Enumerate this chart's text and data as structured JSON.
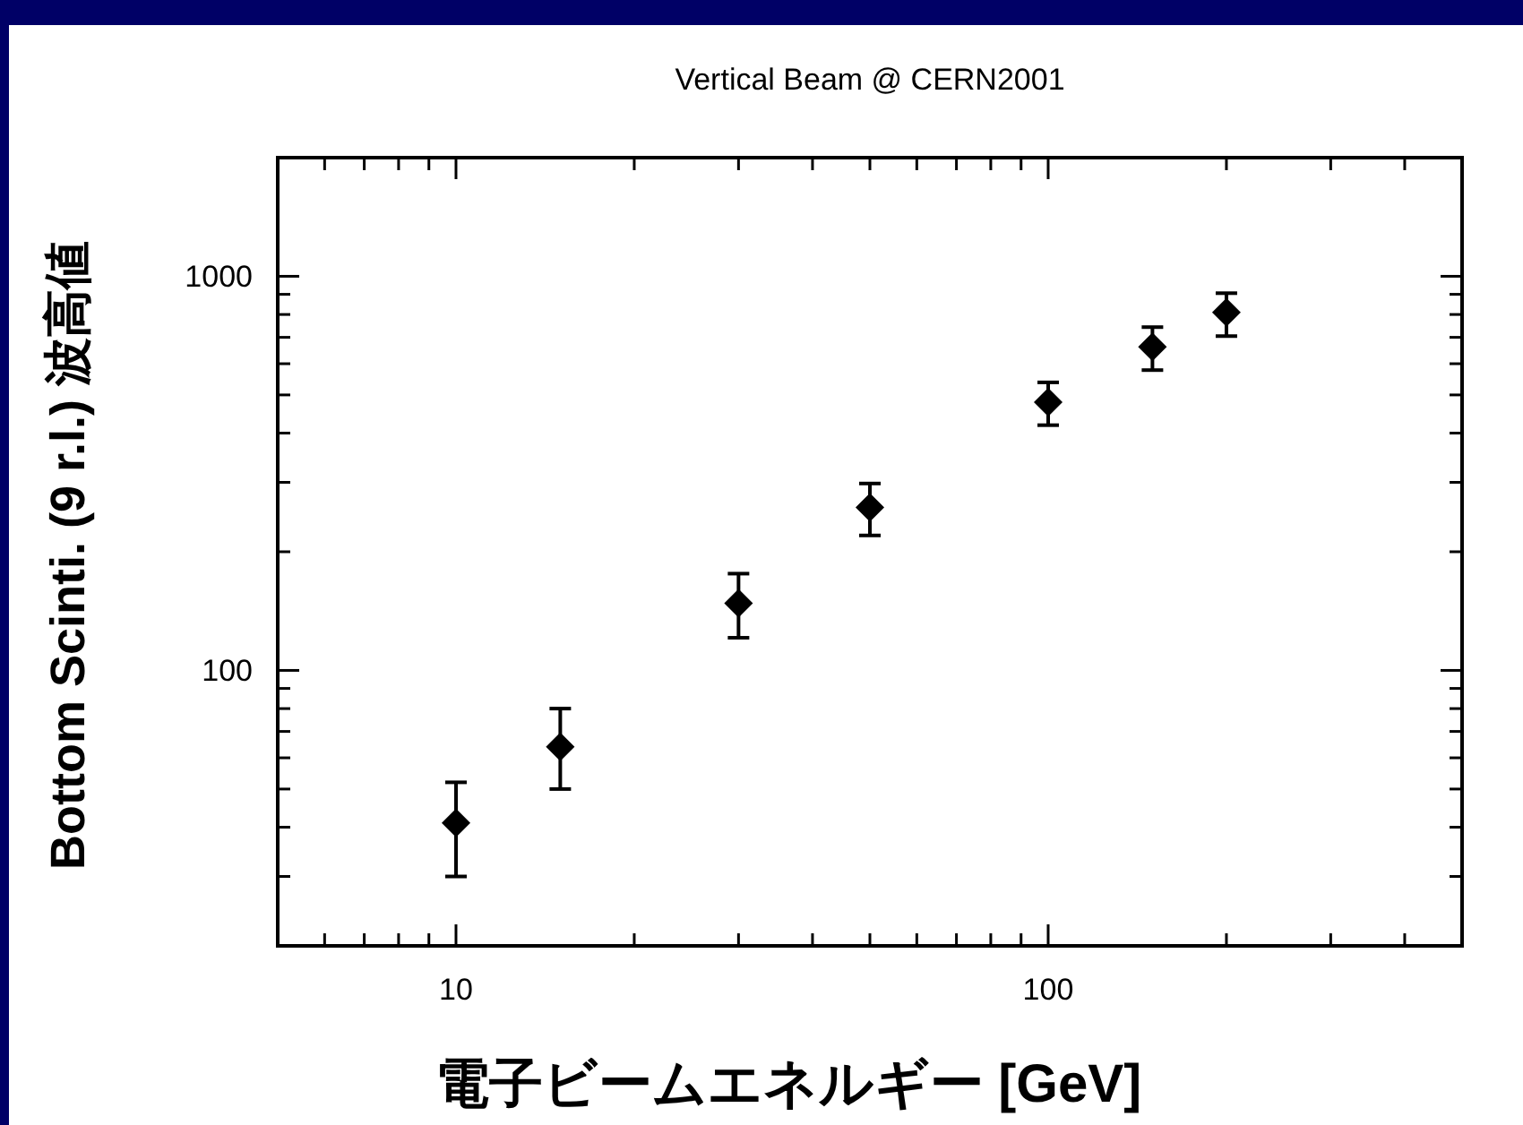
{
  "chart_data": {
    "type": "scatter",
    "title": "Vertical Beam @ CERN2001",
    "xlabel": "電子ビームエネルギー [GeV]",
    "ylabel": "Bottom Scinti. (9 r.l.) 波高値",
    "x": [
      10,
      15,
      30,
      50,
      100,
      150,
      200
    ],
    "values": [
      41,
      64,
      148,
      259,
      479,
      662,
      810
    ],
    "errors": [
      [
        30,
        52
      ],
      [
        50,
        80
      ],
      [
        121,
        176
      ],
      [
        220,
        298
      ],
      [
        419,
        538
      ],
      [
        578,
        743
      ],
      [
        705,
        906
      ]
    ],
    "color": "#000000",
    "marker": "diamond",
    "log": "xy",
    "grid": false,
    "xlim": [
      5,
      500
    ],
    "xticks": [
      10,
      100
    ],
    "ylim": [
      20,
      2000
    ],
    "yticks": [
      100,
      1000
    ]
  }
}
